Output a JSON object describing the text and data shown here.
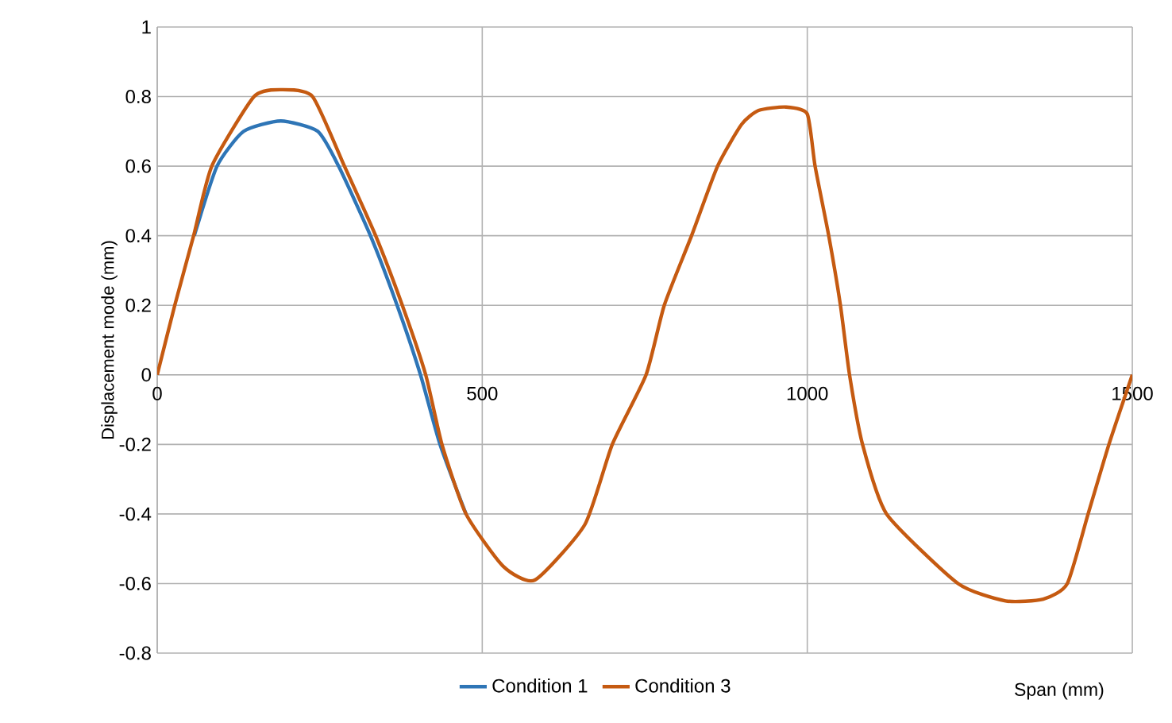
{
  "chart_data": {
    "type": "line",
    "xlabel": "Span (mm)",
    "ylabel": "Displacement mode (mm)",
    "xlim": [
      0,
      1500
    ],
    "ylim": [
      -0.8,
      1
    ],
    "xticks": [
      0,
      500,
      1000,
      1500
    ],
    "yticks": [
      -0.8,
      -0.6,
      -0.4,
      -0.2,
      0,
      0.2,
      0.4,
      0.6,
      0.8,
      1
    ],
    "grid": true,
    "legend": "bottom",
    "marker": "none",
    "line_style": "solid",
    "series": [
      {
        "name": "Condition 1",
        "color": "#2e75b6",
        "x": [
          57,
          92,
          133,
          190,
          247,
          279,
          328,
          369,
          405,
          435,
          475
        ],
        "values": [
          0.4,
          0.6,
          0.7,
          0.73,
          0.7,
          0.6,
          0.4,
          0.2,
          0,
          -0.2,
          -0.4
        ]
      },
      {
        "name": "Condition 3",
        "color": "#c55a11",
        "x": [
          0,
          27,
          56,
          84,
          149,
          191,
          239,
          288,
          336,
          377,
          413,
          438,
          475,
          532,
          581,
          658,
          700,
          752,
          780,
          822,
          862,
          899,
          925,
          967,
          1000,
          1012,
          1033,
          1051,
          1065,
          1085,
          1122,
          1232,
          1305,
          1363,
          1400,
          1432,
          1464,
          1500
        ],
        "values": [
          0,
          0.2,
          0.4,
          0.6,
          0.8,
          0.82,
          0.8,
          0.6,
          0.4,
          0.2,
          0,
          -0.2,
          -0.4,
          -0.55,
          -0.59,
          -0.43,
          -0.2,
          0,
          0.2,
          0.4,
          0.6,
          0.72,
          0.76,
          0.77,
          0.75,
          0.6,
          0.4,
          0.2,
          0,
          -0.2,
          -0.4,
          -0.6,
          -0.65,
          -0.645,
          -0.6,
          -0.4,
          -0.2,
          0
        ]
      }
    ]
  }
}
